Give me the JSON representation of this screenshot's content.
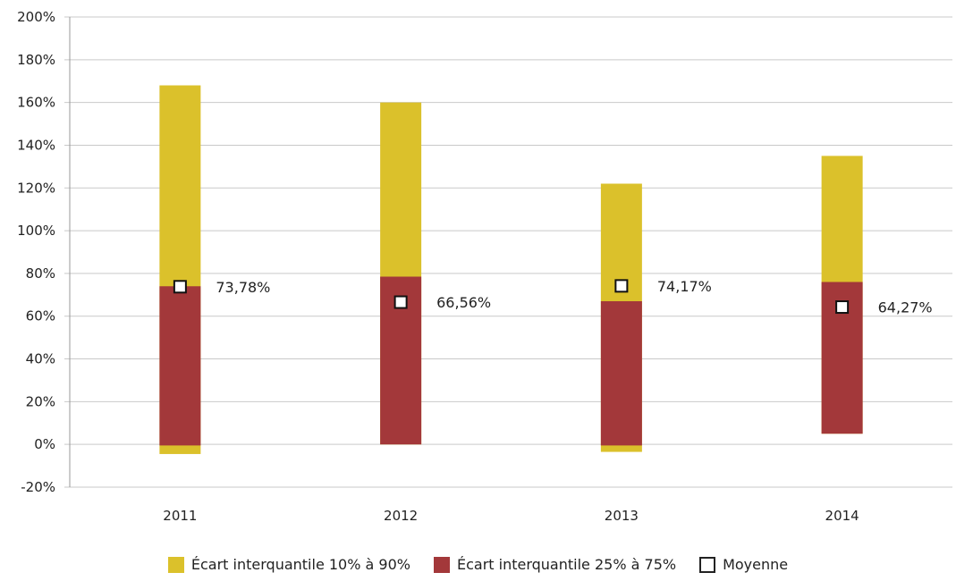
{
  "chart_data": {
    "type": "bar",
    "title": "",
    "xlabel": "",
    "ylabel": "",
    "categories": [
      "2011",
      "2012",
      "2013",
      "2014"
    ],
    "ylim": [
      -20,
      200
    ],
    "yticks": [
      -20,
      0,
      20,
      40,
      60,
      80,
      100,
      120,
      140,
      160,
      180,
      200
    ],
    "y_tick_suffix": "%",
    "grid": "horizontal",
    "legend_position": "bottom",
    "series": [
      {
        "name": "Écart interquantile 10% à 90%",
        "low": [
          -4.5,
          0,
          -3.5,
          5
        ],
        "high": [
          168,
          160,
          122,
          135
        ],
        "color": "#dbc12b"
      },
      {
        "name": "Écart interquantile 25% à 75%",
        "low": [
          -0.5,
          0,
          -0.5,
          5
        ],
        "high": [
          74,
          78.5,
          67,
          76
        ],
        "color": "#a3383a"
      },
      {
        "name": "Moyenne",
        "values": [
          73.78,
          66.56,
          74.17,
          64.27
        ],
        "labels": [
          "73,78%",
          "66,56%",
          "74,17%",
          "64,27%"
        ],
        "color": "#ffffff"
      }
    ]
  }
}
